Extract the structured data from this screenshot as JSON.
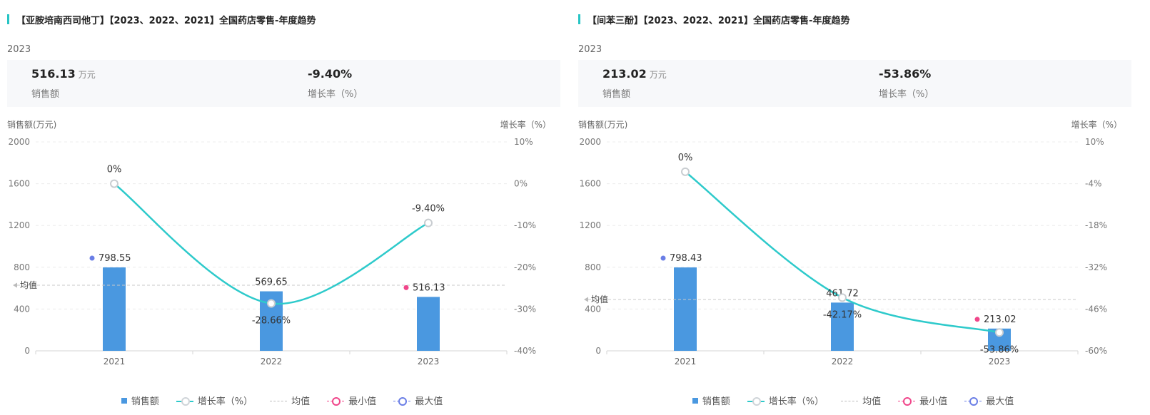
{
  "panels": [
    {
      "title": "【亚胺培南西司他丁】【2023、2022、2021】全国药店零售-年度趋势",
      "year": "2023",
      "kpi": {
        "sales_value": "516.13",
        "sales_unit": "万元",
        "sales_label": "销售额",
        "growth_value": "-9.40%",
        "growth_label": "增长率（%）"
      },
      "left_axis_title": "销售额(万元)",
      "right_axis_title": "增长率（%）"
    },
    {
      "title": "【间苯三酚】【2023、2022、2021】全国药店零售-年度趋势",
      "year": "2023",
      "kpi": {
        "sales_value": "213.02",
        "sales_unit": "万元",
        "sales_label": "销售额",
        "growth_value": "-53.86%",
        "growth_label": "增长率（%）"
      },
      "left_axis_title": "销售额(万元)",
      "right_axis_title": "增长率（%）"
    }
  ],
  "legend": {
    "sales": "销售额",
    "growth": "增长率（%）",
    "average": "均值",
    "min": "最小值",
    "max": "最大值"
  },
  "colors": {
    "bar": "#4a98e0",
    "line": "#2ecacb",
    "min": "#f0468a",
    "max": "#6a7ee6",
    "title_accent": "#26c4c4"
  },
  "chart_data": [
    {
      "type": "bar",
      "categories": [
        "2021",
        "2022",
        "2023"
      ],
      "series": [
        {
          "name": "销售额",
          "values": [
            798.55,
            569.65,
            516.13
          ],
          "labels": [
            "798.55",
            "569.65",
            "516.13"
          ],
          "axis": "left"
        },
        {
          "name": "增长率（%）",
          "type": "line",
          "values": [
            0,
            -28.66,
            -9.4
          ],
          "labels": [
            "0%",
            "-28.66%",
            "-9.40%"
          ],
          "axis": "right"
        }
      ],
      "y_left": {
        "min": 0,
        "max": 2000,
        "ticks": [
          "0",
          "400",
          "800",
          "1200",
          "1600",
          "2000"
        ]
      },
      "y_right": {
        "min": -40,
        "max": 10,
        "ticks": [
          "-40%",
          "-30%",
          "-20%",
          "-10%",
          "0%",
          "10%"
        ]
      },
      "average": 628.11,
      "average_label": "均值",
      "min_index": 2,
      "max_index": 0,
      "grid": true,
      "legend_position": "bottom"
    },
    {
      "type": "bar",
      "categories": [
        "2021",
        "2022",
        "2023"
      ],
      "series": [
        {
          "name": "销售额",
          "values": [
            798.43,
            461.72,
            213.02
          ],
          "labels": [
            "798.43",
            "461.72",
            "213.02"
          ],
          "axis": "left"
        },
        {
          "name": "增长率（%）",
          "type": "line",
          "values": [
            0,
            -42.17,
            -53.86
          ],
          "labels": [
            "0%",
            "-42.17%",
            "-53.86%"
          ],
          "axis": "right"
        }
      ],
      "y_left": {
        "min": 0,
        "max": 2000,
        "ticks": [
          "0",
          "400",
          "800",
          "1200",
          "1600",
          "2000"
        ]
      },
      "y_right": {
        "min": -60,
        "max": 10,
        "ticks": [
          "-60%",
          "-46%",
          "-32%",
          "-18%",
          "-4%",
          "10%"
        ]
      },
      "average": 491.06,
      "average_label": "均值",
      "min_index": 2,
      "max_index": 0,
      "grid": true,
      "legend_position": "bottom"
    }
  ]
}
